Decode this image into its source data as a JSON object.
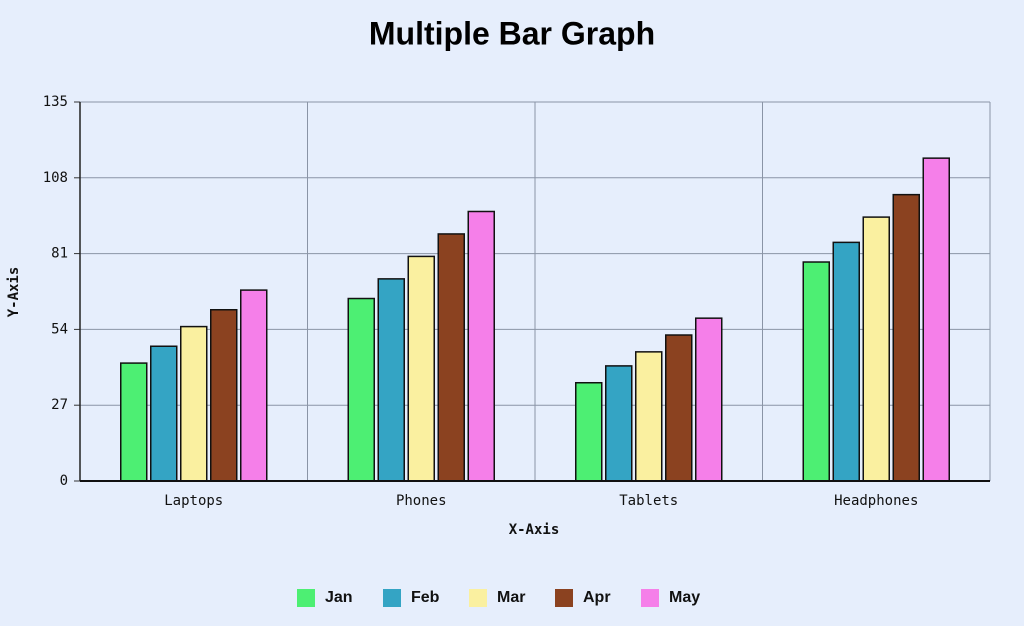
{
  "chart_data": {
    "type": "bar",
    "title": "Multiple Bar Graph",
    "x_label": "X-Axis",
    "y_label": "Y-Axis",
    "categories": [
      "Laptops",
      "Phones",
      "Tablets",
      "Headphones"
    ],
    "series": [
      {
        "name": "Jan",
        "color": "#4def73",
        "values": [
          42,
          65,
          35,
          78
        ]
      },
      {
        "name": "Feb",
        "color": "#34a4c4",
        "values": [
          48,
          72,
          41,
          85
        ]
      },
      {
        "name": "Mar",
        "color": "#faf0a0",
        "values": [
          55,
          80,
          46,
          94
        ]
      },
      {
        "name": "Apr",
        "color": "#8b4220",
        "values": [
          61,
          88,
          52,
          102
        ]
      },
      {
        "name": "May",
        "color": "#f57fe9",
        "values": [
          68,
          96,
          58,
          115
        ]
      }
    ],
    "ylim": [
      0,
      135
    ],
    "yticks": [
      0,
      27,
      54,
      81,
      108,
      135
    ],
    "grid": true,
    "legend": "bottom"
  }
}
